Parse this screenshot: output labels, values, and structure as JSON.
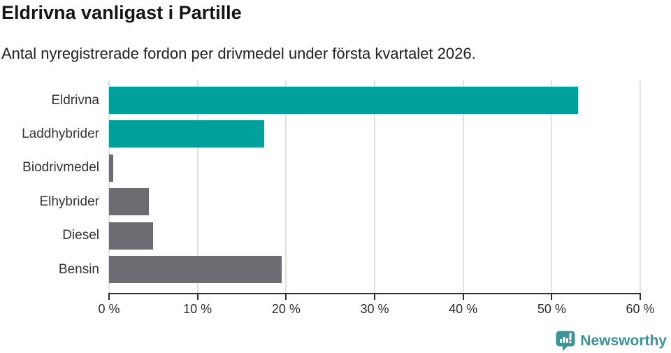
{
  "header": {
    "title": "Eldrivna vanligast i Partille",
    "subtitle": "Antal nyregistrerade fordon per drivmedel under första kvartalet 2026."
  },
  "chart_data": {
    "type": "bar",
    "orientation": "horizontal",
    "title": "Eldrivna vanligast i Partille",
    "subtitle": "Antal nyregistrerade fordon per drivmedel under första kvartalet 2026.",
    "categories": [
      "Eldrivna",
      "Laddhybrider",
      "Biodrivmedel",
      "Elhybrider",
      "Diesel",
      "Bensin"
    ],
    "values": [
      53,
      17.5,
      0.5,
      4.5,
      5,
      19.5
    ],
    "unit": "%",
    "bar_colors": [
      "#00a19b",
      "#00a19b",
      "#6c6c72",
      "#6c6c72",
      "#6c6c72",
      "#6c6c72"
    ],
    "accent_color": "#00a19b",
    "muted_color": "#6c6c72",
    "xlim": [
      0,
      60
    ],
    "x_ticks": [
      {
        "value": 0,
        "label": "0 %"
      },
      {
        "value": 10,
        "label": "10 %"
      },
      {
        "value": 20,
        "label": "20 %"
      },
      {
        "value": 30,
        "label": "30 %"
      },
      {
        "value": 40,
        "label": "40 %"
      },
      {
        "value": 50,
        "label": "50 %"
      },
      {
        "value": 60,
        "label": "60 %"
      }
    ],
    "grid": true,
    "gridline_color": "#e1e1e1",
    "axis_color": "#2e2e2e",
    "legend": "none"
  },
  "footer": {
    "brand": "Newsworthy",
    "brand_color": "#3e9398",
    "icon": "newsworthy-speech-bubble-barchart-icon"
  }
}
